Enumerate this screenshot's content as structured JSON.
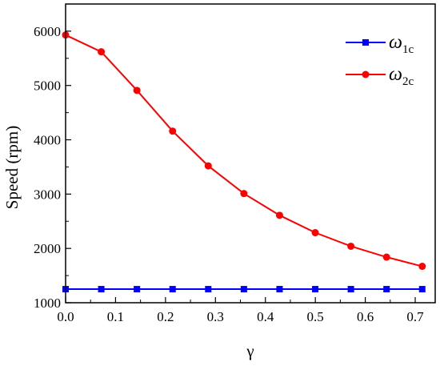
{
  "chart_data": {
    "type": "line",
    "xlabel": "γ",
    "ylabel": "Speed (rpm)",
    "xlim": [
      0.0,
      0.74
    ],
    "ylim": [
      1000,
      6500
    ],
    "xticks": [
      "0.0",
      "0.1",
      "0.2",
      "0.3",
      "0.4",
      "0.5",
      "0.6",
      "0.7"
    ],
    "yticks": [
      "1000",
      "2000",
      "3000",
      "4000",
      "5000",
      "6000"
    ],
    "grid": false,
    "legend_position": "top-right",
    "series": [
      {
        "name": "ω1c",
        "legend_symbol": "ω",
        "legend_subscript": "1c",
        "color": "#0000ff",
        "marker": "square",
        "x": [
          0.0,
          0.0714,
          0.1428,
          0.2142,
          0.2856,
          0.357,
          0.4284,
          0.4998,
          0.5712,
          0.6426,
          0.714
        ],
        "y": [
          1250,
          1250,
          1250,
          1250,
          1250,
          1250,
          1250,
          1250,
          1250,
          1250,
          1250
        ]
      },
      {
        "name": "ω2c",
        "legend_symbol": "ω",
        "legend_subscript": "2c",
        "color": "#ff0000",
        "marker": "circle",
        "x": [
          0.0,
          0.0714,
          0.1428,
          0.2142,
          0.2856,
          0.357,
          0.4284,
          0.4998,
          0.5712,
          0.6426,
          0.714
        ],
        "y": [
          5930,
          5620,
          4910,
          4160,
          3520,
          3010,
          2610,
          2290,
          2040,
          1840,
          1670
        ]
      }
    ]
  }
}
